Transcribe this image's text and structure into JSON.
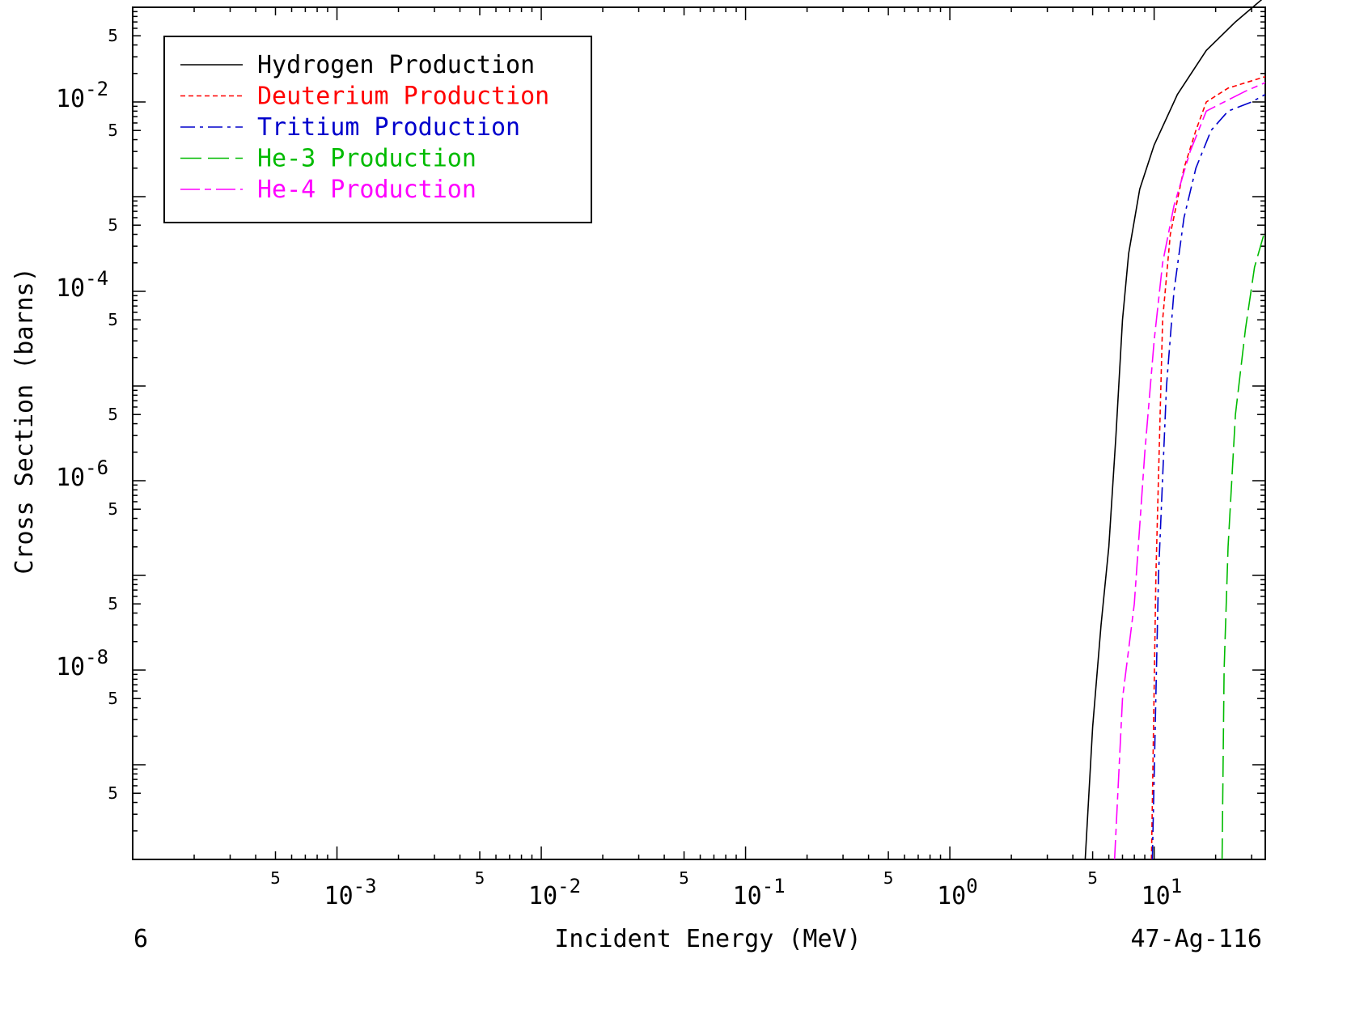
{
  "chart_data": {
    "type": "line",
    "title": "",
    "xlabel": "Incident Energy (MeV)",
    "ylabel": "Cross Section (barns)",
    "x_scale": "log",
    "y_scale": "log",
    "xlim": [
      0.0001,
      35
    ],
    "ylim": [
      1e-10,
      0.1
    ],
    "x_decade_ticks": [
      "10-3",
      "10-2",
      "10-1",
      "100",
      "101"
    ],
    "y_decade_ticks": [
      "10-2",
      "10-4",
      "10-6",
      "10-8"
    ],
    "minor_half_label": "5",
    "legend_position": "top-left",
    "footer_left": "6",
    "footer_right": "47-Ag-116",
    "series": [
      {
        "name": "Hydrogen Production",
        "color": "#000000",
        "dash": "solid",
        "points": [
          [
            4.6,
            1e-10
          ],
          [
            5.0,
            2.5e-09
          ],
          [
            5.5,
            3e-08
          ],
          [
            6.0,
            2e-07
          ],
          [
            6.5,
            3e-06
          ],
          [
            7.0,
            5e-05
          ],
          [
            7.5,
            0.00025
          ],
          [
            8.5,
            0.0012
          ],
          [
            10,
            0.0035
          ],
          [
            13,
            0.012
          ],
          [
            18,
            0.035
          ],
          [
            25,
            0.07
          ],
          [
            35,
            0.13
          ]
        ]
      },
      {
        "name": "Deuterium Production",
        "color": "#ff0000",
        "dash": "short",
        "points": [
          [
            9.7,
            1e-10
          ],
          [
            10.2,
            1e-07
          ],
          [
            11.0,
            5e-05
          ],
          [
            12,
            0.0004
          ],
          [
            14,
            0.002
          ],
          [
            16,
            0.005
          ],
          [
            18,
            0.01
          ],
          [
            23,
            0.014
          ],
          [
            35,
            0.0185
          ]
        ]
      },
      {
        "name": "Tritium Production",
        "color": "#0000cc",
        "dash": "dashdot",
        "points": [
          [
            9.8,
            1e-10
          ],
          [
            10.5,
            1e-07
          ],
          [
            11.5,
            1e-05
          ],
          [
            12.5,
            0.0001
          ],
          [
            14,
            0.0006
          ],
          [
            16,
            0.002
          ],
          [
            19,
            0.005
          ],
          [
            23,
            0.008
          ],
          [
            30,
            0.01
          ],
          [
            35,
            0.012
          ]
        ]
      },
      {
        "name": "He-3 Production",
        "color": "#00bb00",
        "dash": "long",
        "points": [
          [
            21.5,
            1e-10
          ],
          [
            22,
            1e-08
          ],
          [
            23,
            2e-07
          ],
          [
            25,
            5e-06
          ],
          [
            28,
            4e-05
          ],
          [
            31,
            0.00018
          ],
          [
            35,
            0.00045
          ]
        ]
      },
      {
        "name": "He-4 Production",
        "color": "#ff00ff",
        "dash": "longshort",
        "points": [
          [
            6.4,
            1e-10
          ],
          [
            7.0,
            5e-09
          ],
          [
            8.0,
            5e-08
          ],
          [
            9.0,
            2e-06
          ],
          [
            10,
            3e-05
          ],
          [
            11,
            0.0002
          ],
          [
            12.5,
            0.0008
          ],
          [
            15,
            0.003
          ],
          [
            18,
            0.008
          ],
          [
            21,
            0.0095
          ],
          [
            28,
            0.013
          ],
          [
            35,
            0.016
          ]
        ]
      }
    ]
  }
}
